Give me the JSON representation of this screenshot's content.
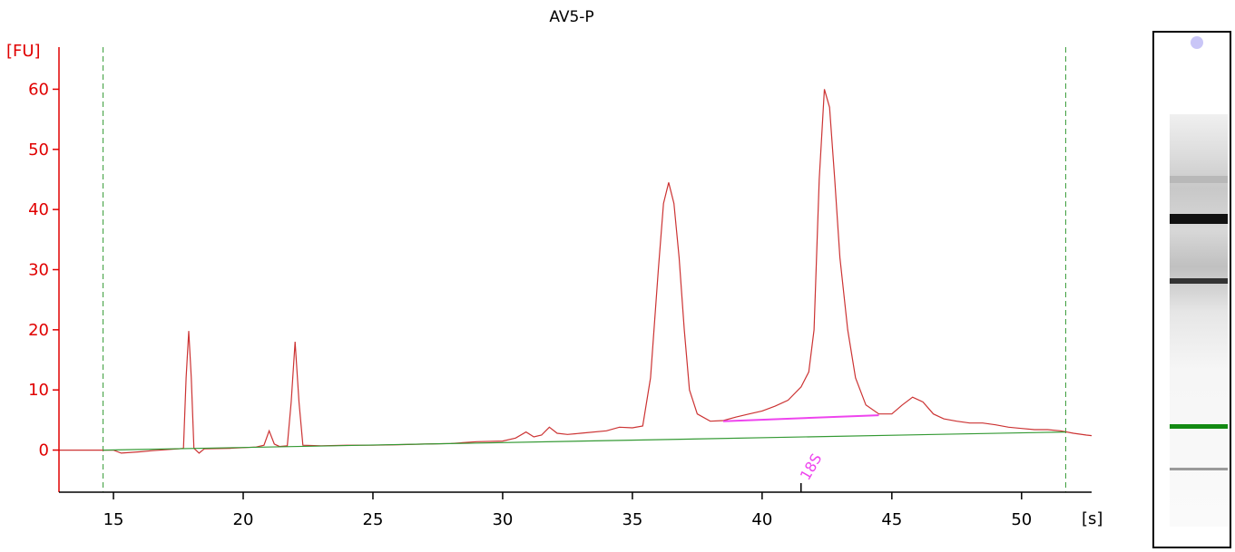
{
  "chart_data": {
    "type": "line",
    "title": "AV5-P",
    "xlabel": "[s]",
    "ylabel": "[FU]",
    "xlim": [
      12.9,
      52.7
    ],
    "ylim": [
      -7,
      67
    ],
    "xticks": [
      15,
      20,
      25,
      30,
      35,
      40,
      45,
      50
    ],
    "yticks": [
      0,
      10,
      20,
      30,
      40,
      50,
      60
    ],
    "grid": false,
    "markers": [
      14.6,
      51.7
    ],
    "series": [
      {
        "color": "#cc3333",
        "points": [
          [
            12.9,
            0.0
          ],
          [
            15.0,
            0.0
          ],
          [
            15.3,
            -0.5
          ],
          [
            16.0,
            -0.3
          ],
          [
            16.5,
            -0.1
          ],
          [
            17.5,
            0.2
          ],
          [
            17.7,
            0.3
          ],
          [
            17.8,
            12.0
          ],
          [
            17.9,
            19.8
          ],
          [
            18.0,
            12.0
          ],
          [
            18.1,
            0.3
          ],
          [
            18.3,
            -0.5
          ],
          [
            18.5,
            0.2
          ],
          [
            19.5,
            0.3
          ],
          [
            20.5,
            0.5
          ],
          [
            20.8,
            0.8
          ],
          [
            21.0,
            3.2
          ],
          [
            21.2,
            1.0
          ],
          [
            21.4,
            0.6
          ],
          [
            21.7,
            0.7
          ],
          [
            21.85,
            8.0
          ],
          [
            22.0,
            18.0
          ],
          [
            22.15,
            8.0
          ],
          [
            22.3,
            0.8
          ],
          [
            23.0,
            0.7
          ],
          [
            24.0,
            0.8
          ],
          [
            25.0,
            0.8
          ],
          [
            26.0,
            0.9
          ],
          [
            27.0,
            1.0
          ],
          [
            28.0,
            1.1
          ],
          [
            29.0,
            1.4
          ],
          [
            30.0,
            1.5
          ],
          [
            30.5,
            2.0
          ],
          [
            30.9,
            3.0
          ],
          [
            31.2,
            2.2
          ],
          [
            31.5,
            2.5
          ],
          [
            31.8,
            3.8
          ],
          [
            32.1,
            2.8
          ],
          [
            32.5,
            2.6
          ],
          [
            33.0,
            2.8
          ],
          [
            34.0,
            3.2
          ],
          [
            34.5,
            3.8
          ],
          [
            35.0,
            3.7
          ],
          [
            35.4,
            4.0
          ],
          [
            35.7,
            12.0
          ],
          [
            36.0,
            30.0
          ],
          [
            36.2,
            41.0
          ],
          [
            36.4,
            44.5
          ],
          [
            36.6,
            41.0
          ],
          [
            36.8,
            32.0
          ],
          [
            37.0,
            20.0
          ],
          [
            37.2,
            10.0
          ],
          [
            37.5,
            6.0
          ],
          [
            38.0,
            4.8
          ],
          [
            38.5,
            4.9
          ],
          [
            39.0,
            5.5
          ],
          [
            39.5,
            6.0
          ],
          [
            40.0,
            6.5
          ],
          [
            40.5,
            7.3
          ],
          [
            41.0,
            8.3
          ],
          [
            41.5,
            10.5
          ],
          [
            41.8,
            13.0
          ],
          [
            42.0,
            20.0
          ],
          [
            42.2,
            45.0
          ],
          [
            42.4,
            60.0
          ],
          [
            42.6,
            57.0
          ],
          [
            42.8,
            45.0
          ],
          [
            43.0,
            32.0
          ],
          [
            43.3,
            20.0
          ],
          [
            43.6,
            12.0
          ],
          [
            44.0,
            7.5
          ],
          [
            44.5,
            6.0
          ],
          [
            45.0,
            6.0
          ],
          [
            45.4,
            7.5
          ],
          [
            45.8,
            8.8
          ],
          [
            46.2,
            8.0
          ],
          [
            46.6,
            6.0
          ],
          [
            47.0,
            5.2
          ],
          [
            47.5,
            4.8
          ],
          [
            48.0,
            4.5
          ],
          [
            48.5,
            4.5
          ],
          [
            49.0,
            4.2
          ],
          [
            49.5,
            3.8
          ],
          [
            50.0,
            3.6
          ],
          [
            50.5,
            3.4
          ],
          [
            51.0,
            3.4
          ],
          [
            51.5,
            3.2
          ],
          [
            52.0,
            2.8
          ],
          [
            52.5,
            2.5
          ],
          [
            52.7,
            2.4
          ]
        ]
      },
      {
        "color": "#339933",
        "points": [
          [
            14.6,
            0.0
          ],
          [
            51.7,
            3.0
          ]
        ]
      },
      {
        "color": "#ee44ee",
        "points": [
          [
            38.5,
            4.8
          ],
          [
            44.5,
            5.8
          ]
        ]
      }
    ],
    "annotations": [
      {
        "text": "18S",
        "x": 41.5,
        "color": "#ee44ee"
      }
    ]
  },
  "gel": {
    "bands": [
      {
        "name": "band-upper-faint",
        "color": "#b8b8b8"
      },
      {
        "name": "band-main",
        "color": "#111111"
      },
      {
        "name": "band-lower",
        "color": "#333333"
      },
      {
        "name": "band-marker",
        "color": "#138a13"
      },
      {
        "name": "band-low",
        "color": "#9a9a9a"
      }
    ]
  }
}
